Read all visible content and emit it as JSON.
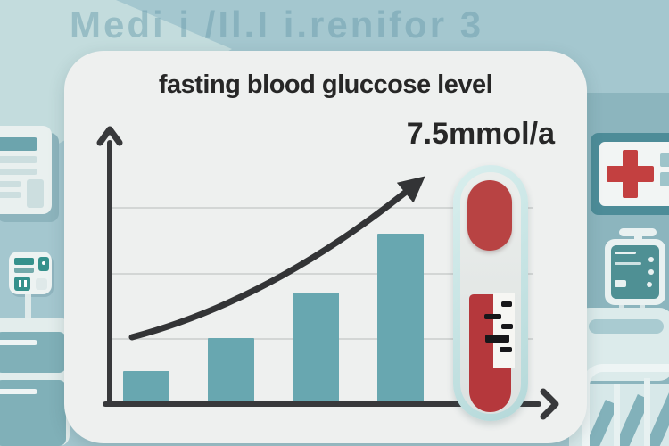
{
  "watermark": "Medi i /Il.I i.renifor 3",
  "card": {
    "title": "fasting blood gluccose level",
    "value_label": "7.5mmol/a"
  },
  "chart_data": {
    "type": "bar",
    "title": "fasting blood gluccose level",
    "annotation": "7.5mmol/a",
    "categories": [
      "bar-1",
      "bar-2",
      "bar-3",
      "bar-4"
    ],
    "values": [
      0.5,
      1.0,
      1.7,
      2.6
    ],
    "value_note": "axis unlabeled; values estimated in gridline units",
    "gridline_values": [
      1,
      2,
      3
    ],
    "ylim": [
      0,
      4
    ],
    "xlabel": "",
    "ylabel": "",
    "grid": true,
    "legend": "none",
    "bar_color": "#68a7b0",
    "trend": "curved black arrow rising from first gridline at left to upper right"
  },
  "colors": {
    "page_background": "#a4c7cf",
    "card_background": "#eef0ef",
    "bar_teal": "#68a7b0",
    "axis_dark": "#38393b",
    "blood_red": "#b5383c",
    "cross_red": "#c34040",
    "capsule_glass": "#b4d8d9"
  },
  "background_decor": [
    "whiteboard-sign",
    "infusion-control-device",
    "medicine-cabinet",
    "red-cross-sign",
    "patient-monitor",
    "hospital-bed"
  ]
}
